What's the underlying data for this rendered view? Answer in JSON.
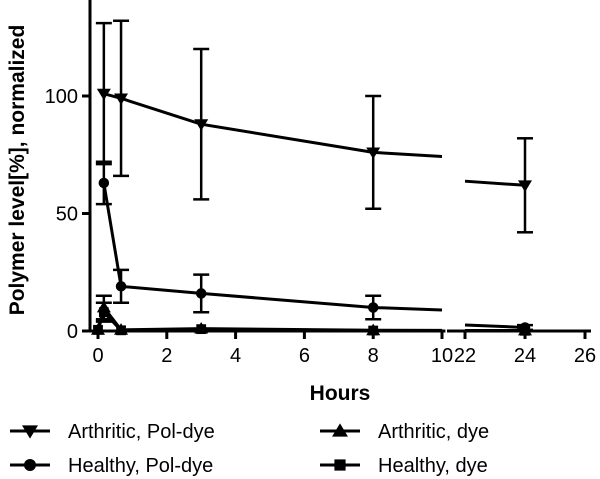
{
  "chart_data": {
    "type": "line",
    "title": "",
    "xlabel": "Hours",
    "ylabel": "Polymer level[%], normalized",
    "x_axis": {
      "segments": [
        {
          "range": [
            -0.4,
            10.1
          ],
          "ticks": [
            0,
            2,
            4,
            6,
            8,
            10
          ]
        },
        {
          "range": [
            21.4,
            26.2
          ],
          "ticks": [
            22,
            24,
            26
          ]
        }
      ],
      "break_between": [
        10,
        22
      ],
      "tick_labels": [
        "0",
        "2",
        "4",
        "6",
        "8",
        "10",
        "22",
        "24",
        "26"
      ]
    },
    "y_axis": {
      "range": [
        0,
        140
      ],
      "ticks": [
        0,
        50,
        100
      ],
      "tick_labels": [
        "0",
        "50",
        "100"
      ]
    },
    "grid": false,
    "legend_position": "bottom",
    "series": [
      {
        "name": "Arthritic, Pol-dye",
        "marker": "triangle-down",
        "x": [
          0.17,
          0.67,
          3,
          8,
          24
        ],
        "y": [
          101,
          99,
          88,
          76,
          62
        ],
        "error": [
          30,
          33,
          32,
          24,
          20
        ]
      },
      {
        "name": "Arthritic, dye",
        "marker": "triangle-up",
        "x": [
          0,
          0.17,
          0.67,
          3,
          8,
          24
        ],
        "y": [
          0.5,
          10,
          0.5,
          1,
          0.3,
          0.2
        ],
        "error": [
          0,
          5,
          0,
          0,
          0,
          0
        ]
      },
      {
        "name": "Healthy, Pol-dye",
        "marker": "circle",
        "x": [
          0.17,
          0.67,
          3,
          8,
          24
        ],
        "y": [
          63,
          19,
          16,
          10,
          1.5
        ],
        "error": [
          9,
          7,
          8,
          5,
          1
        ]
      },
      {
        "name": "Healthy, dye",
        "marker": "square",
        "x": [
          0,
          0.17,
          0.67,
          3,
          8,
          24
        ],
        "y": [
          0.5,
          8,
          0.3,
          0.8,
          0.2,
          0.1
        ],
        "error": [
          0,
          4,
          0,
          0,
          0,
          0
        ]
      }
    ]
  }
}
